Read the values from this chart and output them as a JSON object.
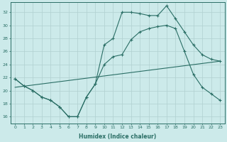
{
  "xlabel": "Humidex (Indice chaleur)",
  "background_color": "#cceaea",
  "grid_color": "#b0d0d0",
  "line_color": "#2a6e65",
  "xlim": [
    -0.5,
    23.5
  ],
  "ylim": [
    15.0,
    33.5
  ],
  "yticks": [
    16,
    18,
    20,
    22,
    24,
    26,
    28,
    30,
    32
  ],
  "xticks": [
    0,
    1,
    2,
    3,
    4,
    5,
    6,
    7,
    8,
    9,
    10,
    11,
    12,
    13,
    14,
    15,
    16,
    17,
    18,
    19,
    20,
    21,
    22,
    23
  ],
  "line1_x": [
    0,
    1,
    2,
    3,
    4,
    5,
    6,
    7,
    8,
    9,
    10,
    11,
    12,
    13,
    14,
    15,
    16,
    17,
    18,
    19,
    20,
    21,
    22,
    23
  ],
  "line1_y": [
    21.8,
    20.7,
    20.0,
    19.0,
    18.5,
    17.5,
    16.0,
    16.0,
    19.0,
    21.0,
    27.0,
    28.0,
    32.0,
    32.0,
    31.8,
    31.5,
    31.5,
    33.0,
    31.0,
    29.0,
    27.0,
    25.5,
    24.8,
    24.5
  ],
  "line2_x": [
    0,
    1,
    2,
    3,
    4,
    5,
    6,
    7,
    8,
    9,
    10,
    11,
    12,
    13,
    14,
    15,
    16,
    17,
    18,
    19,
    20,
    21,
    22,
    23
  ],
  "line2_y": [
    21.8,
    20.7,
    20.0,
    19.0,
    18.5,
    17.5,
    16.0,
    16.0,
    19.0,
    21.0,
    24.0,
    25.2,
    25.5,
    27.8,
    29.0,
    29.5,
    29.8,
    30.0,
    29.5,
    26.0,
    22.5,
    20.5,
    19.5,
    18.5
  ],
  "line3_x": [
    0,
    23
  ],
  "line3_y": [
    20.5,
    24.5
  ]
}
